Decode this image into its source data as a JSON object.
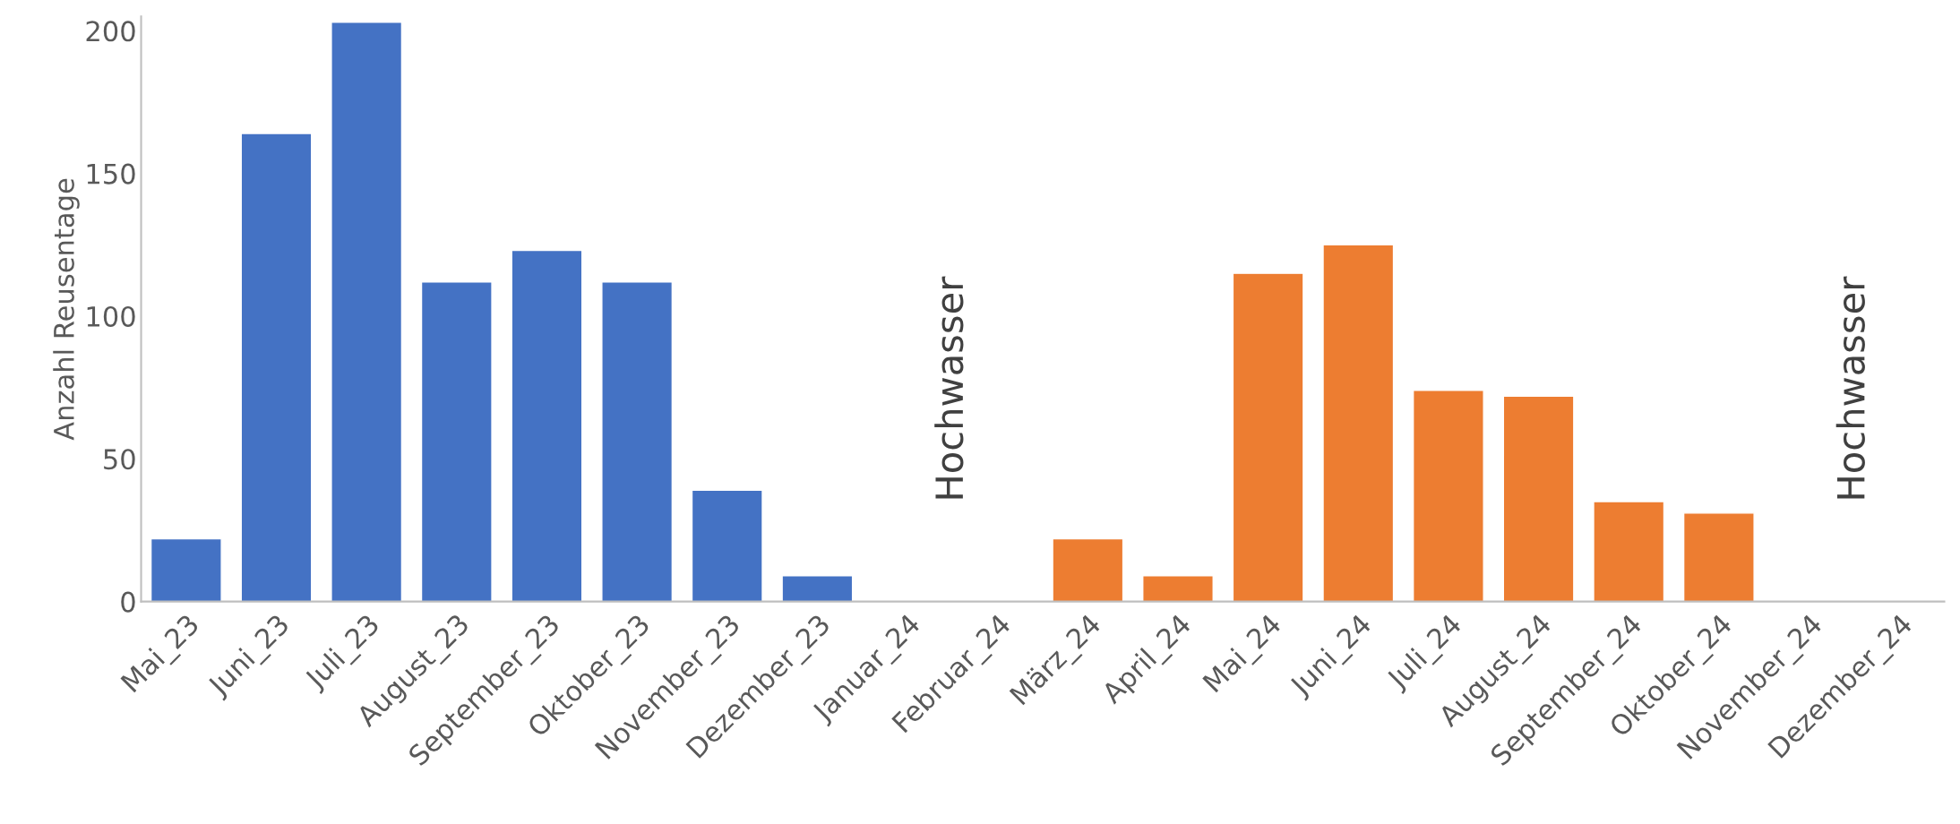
{
  "chart_data": {
    "type": "bar",
    "ylabel": "Anzahl Reusentage",
    "categories": [
      "Mai_23",
      "Juni_23",
      "Juli_23",
      "August_23",
      "September_23",
      "Oktober_23",
      "November_23",
      "Dezember_23",
      "Januar_24",
      "Februar_24",
      "März_24",
      "April_24",
      "Mai_24",
      "Juni_24",
      "Juli_24",
      "August_24",
      "September_24",
      "Oktober_24",
      "November_24",
      "Dezember_24"
    ],
    "values": [
      22,
      164,
      203,
      112,
      123,
      112,
      39,
      9,
      null,
      null,
      22,
      9,
      115,
      125,
      74,
      72,
      35,
      31,
      null,
      null
    ],
    "colors": [
      "#4472c4",
      "#4472c4",
      "#4472c4",
      "#4472c4",
      "#4472c4",
      "#4472c4",
      "#4472c4",
      "#4472c4",
      "#4472c4",
      "#4472c4",
      "#ed7d31",
      "#ed7d31",
      "#ed7d31",
      "#ed7d31",
      "#ed7d31",
      "#ed7d31",
      "#ed7d31",
      "#ed7d31",
      "#ed7d31",
      "#ed7d31"
    ],
    "ylim": [
      0,
      205
    ],
    "yticks": [
      0,
      50,
      100,
      150,
      200
    ],
    "grid": false,
    "annotations": [
      "Hochwasser",
      "Hochwasser"
    ]
  }
}
